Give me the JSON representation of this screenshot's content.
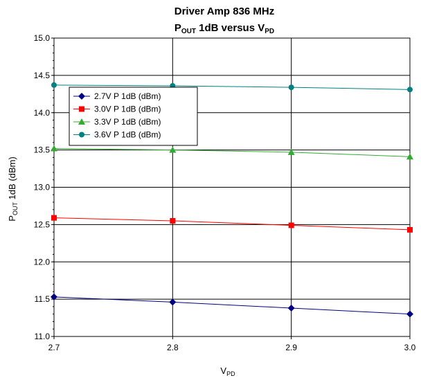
{
  "chart_data": {
    "type": "line",
    "title_line1": "Driver Amp 836 MHz",
    "title_line2": {
      "p": "P",
      "out": "OUT",
      "mid": " 1dB versus V",
      "pd": "PD"
    },
    "xlabel": {
      "v": "V",
      "pd": "PD"
    },
    "ylabel": {
      "p": "P",
      "out": "OUT",
      "rest": " 1dB (dBm)"
    },
    "x": [
      2.7,
      2.8,
      2.9,
      3.0
    ],
    "x_ticks": [
      "2.7",
      "2.8",
      "2.9",
      "3.0"
    ],
    "xlim": [
      2.7,
      3.0
    ],
    "ylim": [
      11.0,
      15.0
    ],
    "y_ticks": [
      "11.0",
      "11.5",
      "12.0",
      "12.5",
      "13.0",
      "13.5",
      "14.0",
      "14.5",
      "15.0"
    ],
    "grid": true,
    "legend_position": "top-left",
    "series": [
      {
        "name": "2.7V P 1dB (dBm)",
        "color": "#000080",
        "marker": "diamond",
        "values": [
          11.53,
          11.46,
          11.38,
          11.3
        ]
      },
      {
        "name": "3.0V P 1dB (dBm)",
        "color": "#ff0000",
        "marker": "square",
        "values": [
          12.59,
          12.55,
          12.49,
          12.43
        ]
      },
      {
        "name": "3.3V P 1dB (dBm)",
        "color": "#33aa33",
        "marker": "triangle",
        "values": [
          13.52,
          13.5,
          13.47,
          13.41
        ]
      },
      {
        "name": "3.6V P 1dB (dBm)",
        "color": "#008080",
        "marker": "circle",
        "values": [
          14.37,
          14.36,
          14.34,
          14.31
        ]
      }
    ]
  }
}
